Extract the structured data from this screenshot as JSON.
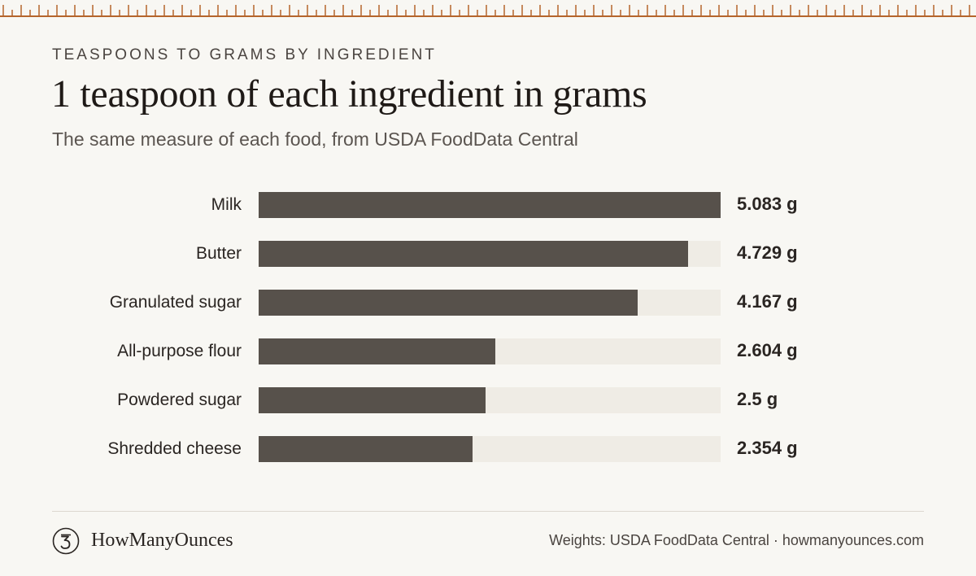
{
  "header": {
    "eyebrow": "TEASPOONS TO GRAMS BY INGREDIENT",
    "title": "1 teaspoon of each ingredient in grams",
    "subtitle": "The same measure of each food, from USDA FoodData Central"
  },
  "colors": {
    "bar": "#57514b",
    "track": "#efece5",
    "ruler": "#b5652c",
    "background": "#f8f7f3"
  },
  "chart_data": {
    "type": "bar",
    "orientation": "horizontal",
    "title": "1 teaspoon of each ingredient in grams",
    "subtitle": "The same measure of each food, from USDA FoodData Central",
    "unit": "g",
    "categories": [
      "Milk",
      "Butter",
      "Granulated sugar",
      "All-purpose flour",
      "Powdered sugar",
      "Shredded cheese"
    ],
    "values": [
      5.083,
      4.729,
      4.167,
      2.604,
      2.5,
      2.354
    ],
    "value_labels": [
      "5.083 g",
      "4.729 g",
      "4.167 g",
      "2.604 g",
      "2.5 g",
      "2.354 g"
    ],
    "xlim": [
      0,
      5.083
    ],
    "grid": false,
    "legend": "none"
  },
  "footer": {
    "brand": "HowManyOunces",
    "logo_icon": "scale-3-icon",
    "credit": "Weights: USDA FoodData Central · howmanyounces.com"
  }
}
